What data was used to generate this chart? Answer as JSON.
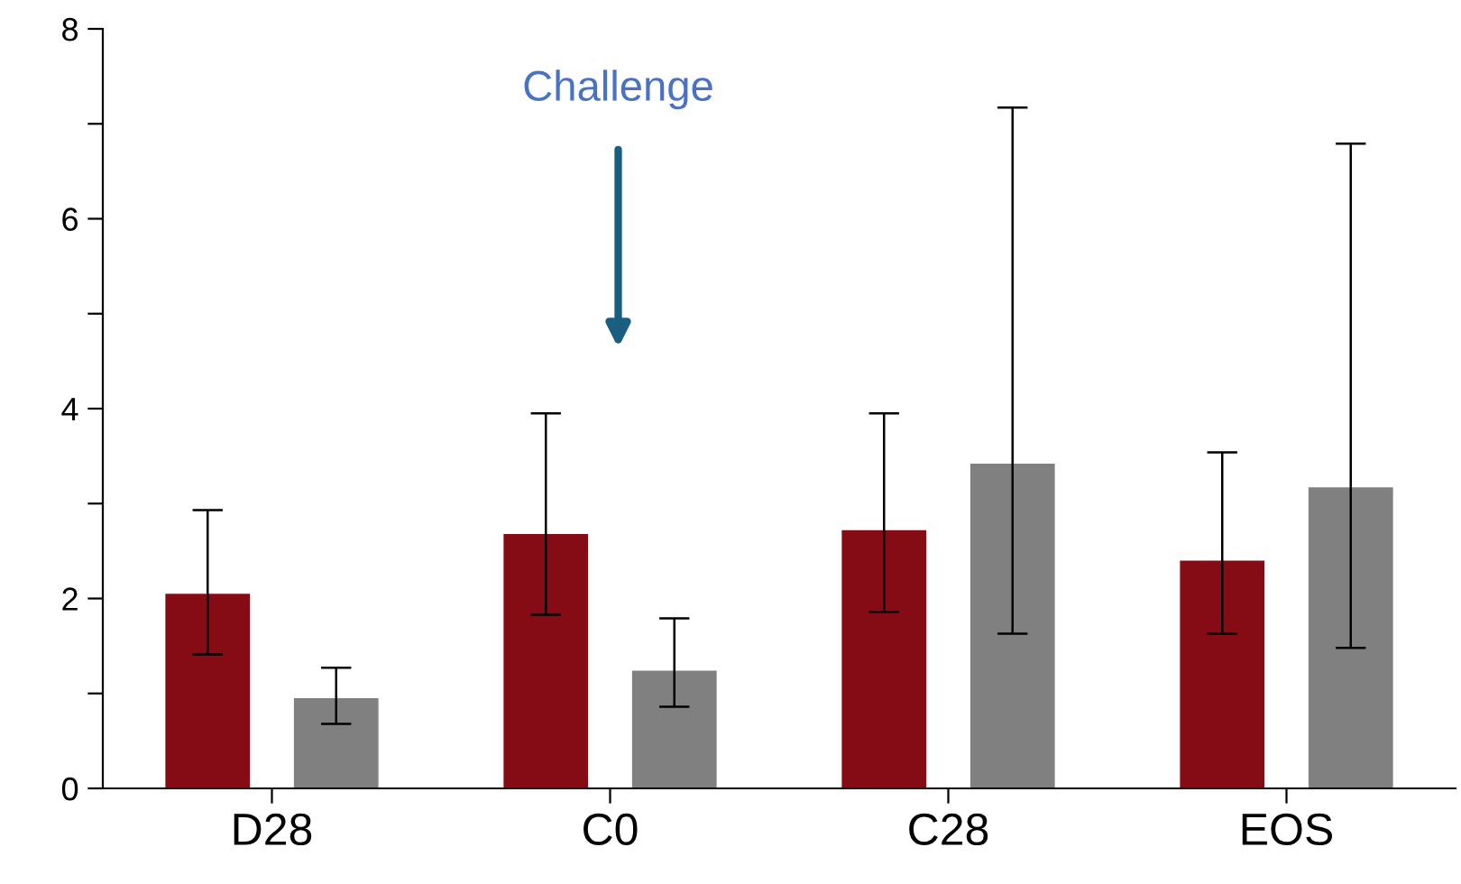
{
  "chart_data": {
    "type": "bar",
    "categories": [
      "D28",
      "C0",
      "C28",
      "EOS"
    ],
    "series": [
      {
        "color": "#850c14",
        "values": [
          2.05,
          2.68,
          2.72,
          2.4
        ],
        "errors": [
          [
            1.41,
            2.93
          ],
          [
            1.83,
            3.95
          ],
          [
            1.86,
            3.95
          ],
          [
            1.63,
            3.54
          ]
        ]
      },
      {
        "color": "#808080",
        "values": [
          0.95,
          1.24,
          3.42,
          3.17
        ],
        "errors": [
          [
            0.68,
            1.27
          ],
          [
            0.86,
            1.79
          ],
          [
            1.63,
            7.17
          ],
          [
            1.48,
            6.79
          ]
        ]
      }
    ],
    "ylim": [
      0,
      8
    ],
    "yticks": [
      0,
      {
        "value": 1,
        "label": null
      },
      2,
      {
        "value": 3,
        "label": null
      },
      4,
      {
        "value": 5,
        "label": null
      },
      6,
      {
        "value": 7,
        "label": null
      },
      8
    ],
    "annotations": [
      "Challenge"
    ],
    "grid": false
  }
}
